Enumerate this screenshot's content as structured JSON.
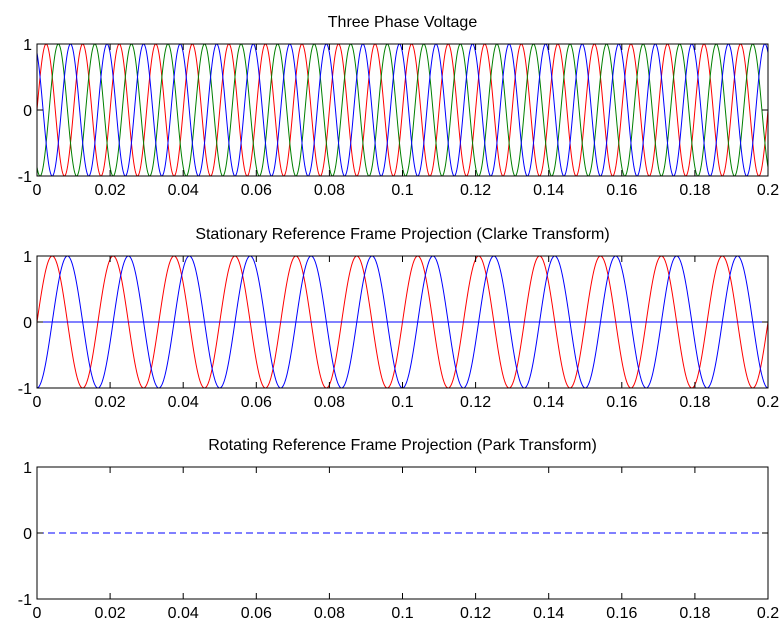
{
  "chart_data": [
    {
      "type": "line",
      "title": "Three Phase Voltage",
      "xlabel": "",
      "ylabel": "",
      "xlim": [
        0,
        0.2
      ],
      "ylim": [
        -1,
        1
      ],
      "xticks": [
        "0",
        "0.02",
        "0.04",
        "0.06",
        "0.08",
        "0.1",
        "0.12",
        "0.14",
        "0.16",
        "0.18",
        "0.2"
      ],
      "yticks": [
        "-1",
        "0",
        "1"
      ],
      "grid": false,
      "legend": "none",
      "series": [
        {
          "color": "#ff0000",
          "function": "sine",
          "amplitude": 1,
          "frequency_hz": 100,
          "phase_deg": 0
        },
        {
          "color": "#008000",
          "function": "sine",
          "amplitude": 1,
          "frequency_hz": 100,
          "phase_deg": -120
        },
        {
          "color": "#0000ff",
          "function": "sine",
          "amplitude": 1,
          "frequency_hz": 100,
          "phase_deg": 120
        }
      ]
    },
    {
      "type": "line",
      "title": "Stationary Reference Frame Projection (Clarke Transform)",
      "xlabel": "",
      "ylabel": "",
      "xlim": [
        0,
        0.2
      ],
      "ylim": [
        -1,
        1
      ],
      "xticks": [
        "0",
        "0.02",
        "0.04",
        "0.06",
        "0.08",
        "0.1",
        "0.12",
        "0.14",
        "0.16",
        "0.18",
        "0.2"
      ],
      "yticks": [
        "-1",
        "0",
        "1"
      ],
      "grid": false,
      "legend": "none",
      "series": [
        {
          "color": "#ff0000",
          "function": "sine",
          "amplitude": 1,
          "frequency_hz": 60,
          "phase_deg": 0
        },
        {
          "color": "#0000ff",
          "function": "sine",
          "amplitude": 1,
          "frequency_hz": 60,
          "phase_deg": -90
        },
        {
          "color": "#0000ff",
          "function": "constant",
          "value": 0
        }
      ]
    },
    {
      "type": "line",
      "title": "Rotating Reference Frame Projection (Park Transform)",
      "xlabel": "",
      "ylabel": "",
      "xlim": [
        0,
        0.2
      ],
      "ylim": [
        -1,
        1
      ],
      "xticks": [
        "0",
        "0.02",
        "0.04",
        "0.06",
        "0.08",
        "0.1",
        "0.12",
        "0.14",
        "0.16",
        "0.18",
        "0.2"
      ],
      "yticks": [
        "-1",
        "0",
        "1"
      ],
      "grid": false,
      "legend": "none",
      "series": [
        {
          "color": "#ff0000",
          "function": "constant",
          "value": 1
        },
        {
          "color": "#0000ff",
          "function": "constant",
          "value": 0,
          "dashed": true
        }
      ]
    }
  ]
}
